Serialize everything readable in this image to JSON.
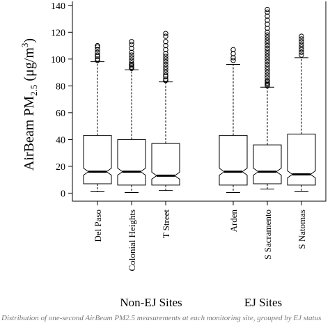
{
  "chart_data": {
    "type": "box",
    "ylabel_parts": {
      "main": "AirBeam PM",
      "sub": "2.5",
      "unit_open": " (μg/m",
      "unit_sup": "3",
      "unit_close": ")"
    },
    "ylim": [
      -6,
      143
    ],
    "yticks": [
      0,
      20,
      40,
      60,
      80,
      100,
      120,
      140
    ],
    "groups": [
      {
        "label": "Non-EJ Sites",
        "categories": [
          "Del Paso",
          "Colonial Heights",
          "T Street"
        ]
      },
      {
        "label": "EJ Sites",
        "categories": [
          "Arden",
          "S Sacramento",
          "S Natomas"
        ]
      }
    ],
    "boxes": [
      {
        "category": "Del Paso",
        "whisker_low": 1,
        "q1": 7,
        "median": 16,
        "q3": 43,
        "whisker_high": 98,
        "outliers": [
          99,
          100,
          102,
          103,
          105,
          107,
          109,
          110
        ]
      },
      {
        "category": "Colonial Heights",
        "whisker_low": 0.5,
        "q1": 6,
        "median": 16,
        "q3": 40,
        "whisker_high": 92,
        "outliers": [
          93,
          94,
          95,
          96,
          97,
          99,
          101,
          103,
          105,
          108,
          111,
          113
        ]
      },
      {
        "category": "T Street",
        "whisker_low": 2,
        "q1": 6,
        "median": 13,
        "q3": 37,
        "whisker_high": 83,
        "outliers": [
          84,
          85,
          87,
          88,
          90,
          92,
          94,
          96,
          98,
          100,
          102,
          104,
          107,
          110,
          113,
          117,
          119
        ]
      },
      {
        "category": "Arden",
        "whisker_low": 0.5,
        "q1": 6,
        "median": 16,
        "q3": 43,
        "whisker_high": 96,
        "outliers": [
          99,
          101,
          104,
          107
        ]
      },
      {
        "category": "S Sacramento",
        "whisker_low": 3,
        "q1": 7,
        "median": 16,
        "q3": 36,
        "whisker_high": 79,
        "outliers": [
          80,
          81,
          82,
          83,
          84,
          86,
          88,
          90,
          92,
          94,
          96,
          98,
          100,
          102,
          104,
          106,
          108,
          110,
          112,
          114,
          116,
          118,
          120,
          123,
          126,
          129,
          132,
          135,
          137
        ]
      },
      {
        "category": "S Natomas",
        "whisker_low": 1,
        "q1": 6,
        "median": 14,
        "q3": 44,
        "whisker_high": 101,
        "outliers": [
          103,
          105,
          107,
          109,
          111,
          113,
          115,
          117
        ]
      }
    ]
  },
  "caption": "Distribution of one-second AirBeam PM2.5 measurements at each monitoring site, grouped by EJ status"
}
